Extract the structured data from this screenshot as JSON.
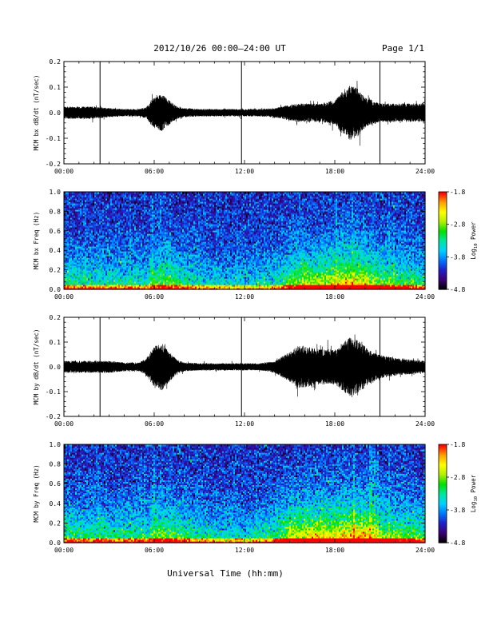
{
  "header": {
    "title": "2012/10/26  00:00–24:00 UT",
    "page": "Page 1/1"
  },
  "xlabel": "Universal Time (hh:mm)",
  "colors": {
    "trace": "#000000",
    "axis": "#000000",
    "background": "#ffffff"
  },
  "colorbar": {
    "label": "Log",
    "label_sub": "10",
    "label_tail": " Power",
    "ticks": [
      "-1.8",
      "-2.8",
      "-3.8",
      "-4.8"
    ],
    "tick_values": [
      -1.8,
      -2.8,
      -3.8,
      -4.8
    ],
    "range": [
      -4.8,
      -1.8
    ],
    "colormap": [
      "#000000",
      "#3c0078",
      "#2020c8",
      "#0078ff",
      "#00d2ff",
      "#00e6a0",
      "#00e000",
      "#b4f000",
      "#ffff00",
      "#ffa000",
      "#ff0000"
    ]
  },
  "chart_data": [
    {
      "type": "line",
      "id": "bx_dbdt",
      "ylabel": "MCM bx dB/dt (nT/sec)",
      "ylim": [
        -0.2,
        0.2
      ],
      "xlim": [
        0,
        24
      ],
      "yticks": [
        "-0.2",
        "-0.1",
        "0.0",
        "0.1",
        "0.2"
      ],
      "ytick_values": [
        -0.2,
        -0.1,
        0.0,
        0.1,
        0.2
      ],
      "xticks": [
        "00:00",
        "06:00",
        "12:00",
        "18:00",
        "24:00"
      ],
      "xtick_values": [
        0,
        6,
        12,
        18,
        24
      ],
      "series": [
        {
          "amplitude_envelope": {
            "hour": [
              0,
              1,
              2,
              3,
              4,
              5,
              5.5,
              6,
              6.5,
              7,
              7.5,
              8,
              9,
              10,
              11,
              12,
              13,
              14,
              15,
              15.5,
              16,
              17,
              18,
              18.5,
              19,
              19.5,
              20,
              20.5,
              21,
              22,
              23,
              24
            ],
            "amplitude": [
              0.02,
              0.02,
              0.02,
              0.015,
              0.012,
              0.012,
              0.02,
              0.05,
              0.06,
              0.04,
              0.02,
              0.015,
              0.012,
              0.012,
              0.012,
              0.012,
              0.012,
              0.015,
              0.025,
              0.03,
              0.03,
              0.03,
              0.04,
              0.07,
              0.09,
              0.08,
              0.05,
              0.04,
              0.03,
              0.03,
              0.03,
              0.03
            ]
          },
          "spikes": [
            {
              "hour": 2.4,
              "min": -0.2,
              "max": 0.2
            },
            {
              "hour": 11.8,
              "min": -0.2,
              "max": 0.2
            },
            {
              "hour": 21.0,
              "min": -0.2,
              "max": 0.2
            }
          ]
        }
      ]
    },
    {
      "type": "heatmap",
      "id": "bx_spec",
      "ylabel": "MCM bx Freq (Hz)",
      "ylim": [
        0.0,
        1.0
      ],
      "xlim": [
        0,
        24
      ],
      "yticks": [
        "0.0",
        "0.2",
        "0.4",
        "0.6",
        "0.8",
        "1.0"
      ],
      "ytick_values": [
        0.0,
        0.2,
        0.4,
        0.6,
        0.8,
        1.0
      ],
      "xticks": [
        "00:00",
        "06:00",
        "12:00",
        "18:00",
        "24:00"
      ],
      "xtick_values": [
        0,
        6,
        12,
        18,
        24
      ],
      "zlim": [
        -4.8,
        -1.8
      ],
      "activity": {
        "hour": [
          0,
          3,
          5.5,
          6,
          7,
          9,
          12,
          14,
          15,
          16,
          17,
          18,
          19,
          20,
          21,
          24
        ],
        "level": [
          0.45,
          0.4,
          0.4,
          0.55,
          0.55,
          0.35,
          0.3,
          0.35,
          0.6,
          0.7,
          0.7,
          0.75,
          0.9,
          0.8,
          0.6,
          0.45
        ]
      }
    },
    {
      "type": "line",
      "id": "by_dbdt",
      "ylabel": "MCM by dB/dt (nT/sec)",
      "ylim": [
        -0.2,
        0.2
      ],
      "xlim": [
        0,
        24
      ],
      "yticks": [
        "-0.2",
        "-0.1",
        "0.0",
        "0.1",
        "0.2"
      ],
      "ytick_values": [
        -0.2,
        -0.1,
        0.0,
        0.1,
        0.2
      ],
      "xticks": [
        "00:00",
        "06:00",
        "12:00",
        "18:00",
        "24:00"
      ],
      "xtick_values": [
        0,
        6,
        12,
        18,
        24
      ],
      "series": [
        {
          "amplitude_envelope": {
            "hour": [
              0,
              1,
              2,
              3,
              4,
              5,
              5.5,
              6,
              6.5,
              7,
              7.5,
              8,
              9,
              10,
              11,
              12,
              13,
              14,
              15,
              15.5,
              16,
              17,
              18,
              18.5,
              19,
              19.5,
              20,
              20.5,
              21,
              22,
              23,
              24
            ],
            "amplitude": [
              0.02,
              0.02,
              0.02,
              0.02,
              0.015,
              0.015,
              0.03,
              0.07,
              0.08,
              0.05,
              0.025,
              0.015,
              0.012,
              0.012,
              0.012,
              0.012,
              0.012,
              0.02,
              0.05,
              0.07,
              0.07,
              0.06,
              0.06,
              0.08,
              0.1,
              0.09,
              0.07,
              0.05,
              0.04,
              0.03,
              0.025,
              0.02
            ]
          },
          "spikes": [
            {
              "hour": 2.4,
              "min": -0.2,
              "max": 0.2
            },
            {
              "hour": 11.8,
              "min": -0.2,
              "max": 0.2
            },
            {
              "hour": 21.0,
              "min": -0.2,
              "max": 0.2
            }
          ]
        }
      ]
    },
    {
      "type": "heatmap",
      "id": "by_spec",
      "ylabel": "MCM by Freq (Hz)",
      "ylim": [
        0.0,
        1.0
      ],
      "xlim": [
        0,
        24
      ],
      "yticks": [
        "0.0",
        "0.2",
        "0.4",
        "0.6",
        "0.8",
        "1.0"
      ],
      "ytick_values": [
        0.0,
        0.2,
        0.4,
        0.6,
        0.8,
        1.0
      ],
      "xticks": [
        "00:00",
        "06:00",
        "12:00",
        "18:00",
        "24:00"
      ],
      "xtick_values": [
        0,
        6,
        12,
        18,
        24
      ],
      "zlim": [
        -4.8,
        -1.8
      ],
      "activity": {
        "hour": [
          0,
          3,
          5.5,
          6,
          7,
          9,
          12,
          14,
          15,
          16,
          17,
          18,
          19,
          20,
          21,
          24
        ],
        "level": [
          0.5,
          0.45,
          0.45,
          0.65,
          0.6,
          0.4,
          0.35,
          0.45,
          0.75,
          0.8,
          0.85,
          0.8,
          0.95,
          0.9,
          0.7,
          0.5
        ]
      }
    }
  ]
}
